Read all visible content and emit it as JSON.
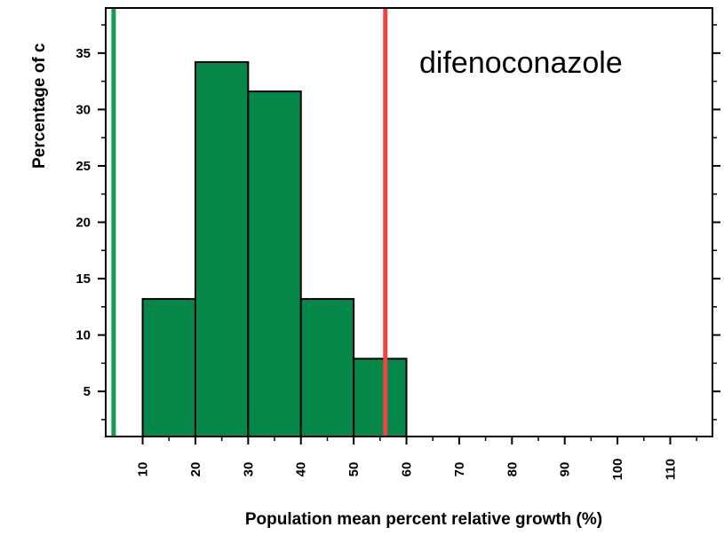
{
  "chart_data": {
    "type": "bar",
    "title": "",
    "annotation": "difenoconazole",
    "xlabel": "Population mean percent relative growth (%)",
    "ylabel": "Percentage of c",
    "x_ticks": [
      10,
      20,
      30,
      40,
      50,
      60,
      70,
      80,
      90,
      100,
      110
    ],
    "y_ticks": [
      5,
      10,
      15,
      20,
      25,
      30,
      35
    ],
    "xlim": [
      3,
      118
    ],
    "ylim": [
      1,
      39
    ],
    "bins": [
      {
        "start": 10,
        "end": 20,
        "value": 13.2
      },
      {
        "start": 20,
        "end": 30,
        "value": 34.2
      },
      {
        "start": 30,
        "end": 40,
        "value": 31.6
      },
      {
        "start": 40,
        "end": 50,
        "value": 13.2
      },
      {
        "start": 50,
        "end": 60,
        "value": 7.9
      }
    ],
    "reference_lines": [
      {
        "x": 4.5,
        "color": "#1a9a50"
      },
      {
        "x": 56,
        "color": "#ef4444"
      }
    ],
    "bar_color": "#06874a",
    "grid": false,
    "legend": "none"
  }
}
